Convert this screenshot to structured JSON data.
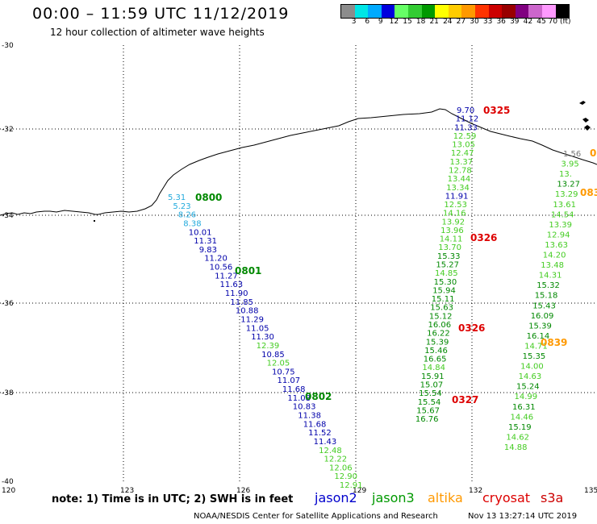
{
  "header": {
    "title": "00:00 – 11:59 UTC 11/12/2019",
    "subtitle": "12 hour collection of altimeter wave heights"
  },
  "colorbar": {
    "colors": [
      "#8c8c8c",
      "#00e6e6",
      "#00aaff",
      "#0000dd",
      "#66ff66",
      "#33cc33",
      "#009900",
      "#ffff00",
      "#ffcc00",
      "#ff9900",
      "#ff3300",
      "#cc0000",
      "#990000",
      "#800080",
      "#cc66cc",
      "#ff99ff",
      "#000000"
    ],
    "labels": [
      "3",
      "6",
      "9",
      "12",
      "15",
      "18",
      "21",
      "24",
      "27",
      "30",
      "33",
      "36",
      "39",
      "42",
      "45",
      "70 (ft)"
    ]
  },
  "axes": {
    "lon_labels": [
      "120",
      "123",
      "126",
      "129",
      "132",
      "135"
    ],
    "lat_labels": [
      "-30",
      "-32",
      "-34",
      "-36",
      "-38",
      "-40"
    ]
  },
  "series_colors": {
    "jason2": "#0000cc",
    "jason3": "#008800",
    "altika": "#ff9900",
    "cryosat": "#dd0000",
    "s3a": "#cc0000",
    "blue_pts": "#0000aa",
    "cyan_pts": "#22aadd",
    "lgreen_pts": "#44cc22",
    "gray_pts": "#777777"
  },
  "track_labels": [
    {
      "text": "0800",
      "sat": "jason3"
    },
    {
      "text": "0801",
      "sat": "jason3"
    },
    {
      "text": "0802",
      "sat": "jason3"
    },
    {
      "text": "0325",
      "sat": "cryosat"
    },
    {
      "text": "0326",
      "sat": "cryosat"
    },
    {
      "text": "0326",
      "sat": "cryosat"
    },
    {
      "text": "0327",
      "sat": "cryosat"
    },
    {
      "text": "0839",
      "sat": "altika"
    },
    {
      "text": "083",
      "sat": "altika"
    },
    {
      "text": "0",
      "sat": "altika"
    }
  ],
  "track_a": [
    {
      "v": "5.31",
      "c": "cyan_pts"
    },
    {
      "v": "5.23",
      "c": "cyan_pts"
    },
    {
      "v": "8.26",
      "c": "cyan_pts"
    },
    {
      "v": "8.38",
      "c": "cyan_pts"
    },
    {
      "v": "10.01",
      "c": "blue_pts"
    },
    {
      "v": "11.31",
      "c": "blue_pts"
    },
    {
      "v": "9.83",
      "c": "blue_pts"
    },
    {
      "v": "11.20",
      "c": "blue_pts"
    },
    {
      "v": "10.56",
      "c": "blue_pts"
    },
    {
      "v": "11.27",
      "c": "blue_pts"
    },
    {
      "v": "11.63",
      "c": "blue_pts"
    },
    {
      "v": "11.90",
      "c": "blue_pts"
    },
    {
      "v": "11.85",
      "c": "blue_pts"
    },
    {
      "v": "10.88",
      "c": "blue_pts"
    },
    {
      "v": "11.29",
      "c": "blue_pts"
    },
    {
      "v": "11.05",
      "c": "blue_pts"
    },
    {
      "v": "11.30",
      "c": "blue_pts"
    },
    {
      "v": "12.39",
      "c": "lgreen_pts"
    },
    {
      "v": "10.85",
      "c": "blue_pts"
    },
    {
      "v": "12.05",
      "c": "lgreen_pts"
    },
    {
      "v": "10.75",
      "c": "blue_pts"
    },
    {
      "v": "11.07",
      "c": "blue_pts"
    },
    {
      "v": "11.68",
      "c": "blue_pts"
    },
    {
      "v": "11.08",
      "c": "blue_pts"
    },
    {
      "v": "10.83",
      "c": "blue_pts"
    },
    {
      "v": "11.38",
      "c": "blue_pts"
    },
    {
      "v": "11.68",
      "c": "blue_pts"
    },
    {
      "v": "11.52",
      "c": "blue_pts"
    },
    {
      "v": "11.43",
      "c": "blue_pts"
    },
    {
      "v": "12.48",
      "c": "lgreen_pts"
    },
    {
      "v": "12.22",
      "c": "lgreen_pts"
    },
    {
      "v": "12.06",
      "c": "lgreen_pts"
    },
    {
      "v": "12.90",
      "c": "lgreen_pts"
    },
    {
      "v": "12.91",
      "c": "lgreen_pts"
    }
  ],
  "track_b": [
    {
      "v": "9.70",
      "c": "blue_pts"
    },
    {
      "v": "11.12",
      "c": "blue_pts"
    },
    {
      "v": "11.33",
      "c": "blue_pts"
    },
    {
      "v": "12.59",
      "c": "lgreen_pts"
    },
    {
      "v": "13.05",
      "c": "lgreen_pts"
    },
    {
      "v": "12.47",
      "c": "lgreen_pts"
    },
    {
      "v": "13.37",
      "c": "lgreen_pts"
    },
    {
      "v": "12.78",
      "c": "lgreen_pts"
    },
    {
      "v": "13.44",
      "c": "lgreen_pts"
    },
    {
      "v": "13.34",
      "c": "lgreen_pts"
    },
    {
      "v": "11.91",
      "c": "blue_pts"
    },
    {
      "v": "12.53",
      "c": "lgreen_pts"
    },
    {
      "v": "14.16",
      "c": "lgreen_pts"
    },
    {
      "v": "13.92",
      "c": "lgreen_pts"
    },
    {
      "v": "13.96",
      "c": "lgreen_pts"
    },
    {
      "v": "14.11",
      "c": "lgreen_pts"
    },
    {
      "v": "13.70",
      "c": "lgreen_pts"
    },
    {
      "v": "15.33",
      "c": "jason3"
    },
    {
      "v": "15.27",
      "c": "jason3"
    },
    {
      "v": "14.85",
      "c": "lgreen_pts"
    },
    {
      "v": "15.30",
      "c": "jason3"
    },
    {
      "v": "15.94",
      "c": "jason3"
    },
    {
      "v": "15.11",
      "c": "jason3"
    },
    {
      "v": "15.63",
      "c": "jason3"
    },
    {
      "v": "15.12",
      "c": "jason3"
    },
    {
      "v": "16.06",
      "c": "jason3"
    },
    {
      "v": "16.22",
      "c": "jason3"
    },
    {
      "v": "15.39",
      "c": "jason3"
    },
    {
      "v": "15.46",
      "c": "jason3"
    },
    {
      "v": "16.65",
      "c": "jason3"
    },
    {
      "v": "14.84",
      "c": "lgreen_pts"
    },
    {
      "v": "15.91",
      "c": "jason3"
    },
    {
      "v": "15.07",
      "c": "jason3"
    },
    {
      "v": "15.54",
      "c": "jason3"
    },
    {
      "v": "15.54",
      "c": "jason3"
    },
    {
      "v": "15.67",
      "c": "jason3"
    },
    {
      "v": "16.76",
      "c": "jason3"
    }
  ],
  "track_c": [
    {
      "v": "1.56",
      "c": "gray_pts"
    },
    {
      "v": "3.95",
      "c": "lgreen_pts"
    },
    {
      "v": "13.",
      "c": "lgreen_pts"
    },
    {
      "v": "13.27",
      "c": "jason3"
    },
    {
      "v": "13.29",
      "c": "lgreen_pts"
    },
    {
      "v": "13.61",
      "c": "lgreen_pts"
    },
    {
      "v": "14.54",
      "c": "lgreen_pts"
    },
    {
      "v": "13.39",
      "c": "lgreen_pts"
    },
    {
      "v": "12.94",
      "c": "lgreen_pts"
    },
    {
      "v": "13.63",
      "c": "lgreen_pts"
    },
    {
      "v": "14.20",
      "c": "lgreen_pts"
    },
    {
      "v": "13.48",
      "c": "lgreen_pts"
    },
    {
      "v": "14.31",
      "c": "lgreen_pts"
    },
    {
      "v": "15.32",
      "c": "jason3"
    },
    {
      "v": "15.18",
      "c": "jason3"
    },
    {
      "v": "15.43",
      "c": "jason3"
    },
    {
      "v": "16.09",
      "c": "jason3"
    },
    {
      "v": "15.39",
      "c": "jason3"
    },
    {
      "v": "16.14",
      "c": "jason3"
    },
    {
      "v": "14.71",
      "c": "lgreen_pts"
    },
    {
      "v": "15.35",
      "c": "jason3"
    },
    {
      "v": "14.00",
      "c": "lgreen_pts"
    },
    {
      "v": "14.63",
      "c": "lgreen_pts"
    },
    {
      "v": "15.24",
      "c": "jason3"
    },
    {
      "v": "14.99",
      "c": "lgreen_pts"
    },
    {
      "v": "16.31",
      "c": "jason3"
    },
    {
      "v": "14.46",
      "c": "lgreen_pts"
    },
    {
      "v": "15.19",
      "c": "jason3"
    },
    {
      "v": "14.62",
      "c": "lgreen_pts"
    },
    {
      "v": "14.88",
      "c": "lgreen_pts"
    }
  ],
  "footer": {
    "note": "note:  1) Time is in UTC;  2) SWH is in feet",
    "legend": [
      {
        "name": "jason2",
        "color": "#0000cc"
      },
      {
        "name": "jason3",
        "color": "#009900"
      },
      {
        "name": "altika",
        "color": "#ff9900"
      },
      {
        "name": "cryosat",
        "color": "#dd0000"
      },
      {
        "name": "s3a",
        "color": "#cc0000"
      }
    ],
    "credit": "NOAA/NESDIS Center for Satellite Applications and Research",
    "timestamp": "Nov 13 13:27:14 UTC 2019"
  }
}
